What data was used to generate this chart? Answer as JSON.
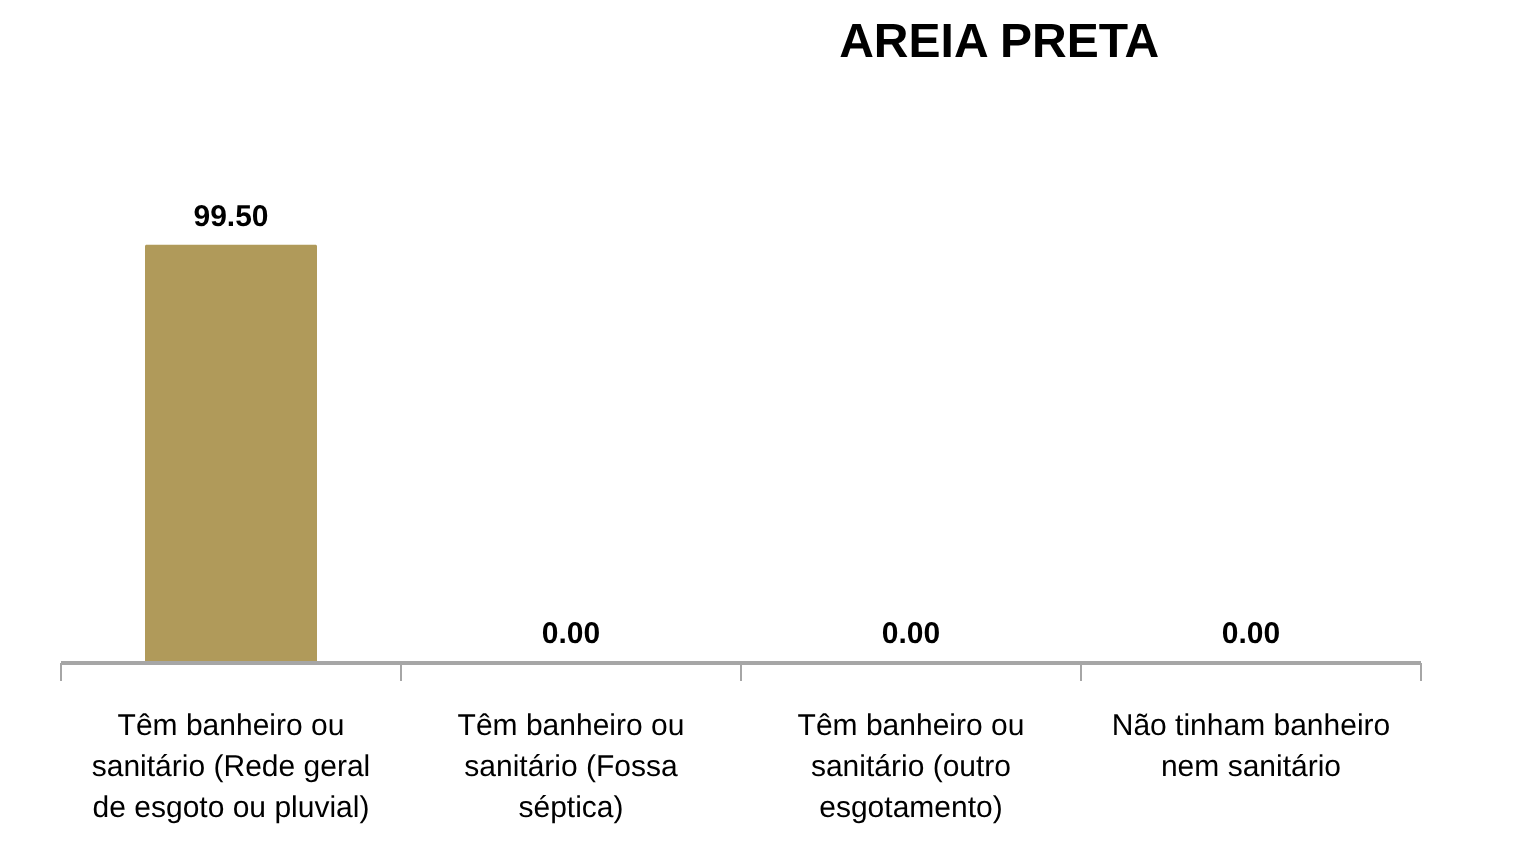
{
  "chart_data": {
    "type": "bar",
    "title": "AREIA PRETA",
    "categories": [
      "Têm banheiro ou sanitário (Rede geral de esgoto ou pluvial)",
      "Têm banheiro ou sanitário (Fossa séptica)",
      "Têm banheiro ou sanitário (outro esgotamento)",
      "Não tinham banheiro nem sanitário"
    ],
    "values": [
      99.5,
      0,
      0,
      0
    ],
    "value_labels": [
      "99.50",
      "0.00",
      "0.00",
      "0.00"
    ],
    "color": "#b09a5a",
    "grid": false
  }
}
